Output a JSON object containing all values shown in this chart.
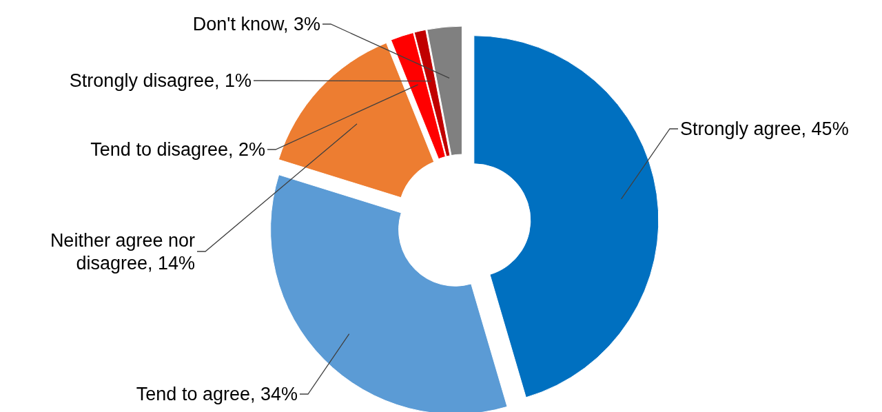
{
  "chart_data": {
    "type": "donut",
    "categories": [
      "Strongly agree",
      "Tend to agree",
      "Neither agree nor disagree",
      "Tend to disagree",
      "Strongly disagree",
      "Don't know"
    ],
    "values": [
      45,
      34,
      14,
      2,
      1,
      3
    ],
    "colors": [
      "#0070c0",
      "#5b9bd5",
      "#ed7d31",
      "#ff0000",
      "#c00000",
      "#808080"
    ],
    "value_labels": [
      "45%",
      "34%",
      "14%",
      "2%",
      "1%",
      "3%"
    ]
  }
}
